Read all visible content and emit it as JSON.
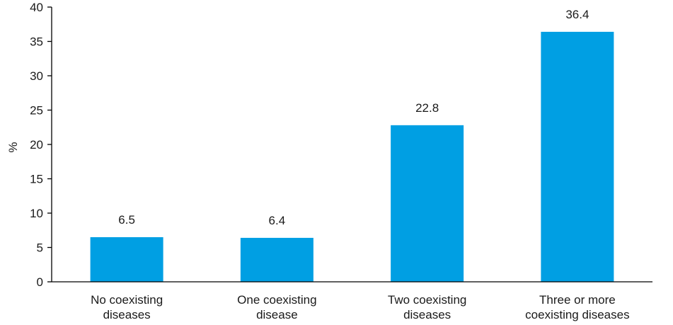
{
  "chart_data": {
    "type": "bar",
    "categories": [
      [
        "No coexisting",
        "diseases"
      ],
      [
        "One coexisting",
        "disease"
      ],
      [
        "Two coexisting",
        "diseases"
      ],
      [
        "Three or more",
        "coexisting diseases"
      ]
    ],
    "values": [
      6.5,
      6.4,
      22.8,
      36.4
    ],
    "data_labels": [
      "6.5",
      "6.4",
      "22.8",
      "36.4"
    ],
    "ylabel": "%",
    "ylim": [
      0,
      40
    ],
    "yticks": [
      0,
      5,
      10,
      15,
      20,
      25,
      30,
      35,
      40
    ],
    "grid": false,
    "bar_color": "#009fe3",
    "axis_color": "#000000"
  }
}
